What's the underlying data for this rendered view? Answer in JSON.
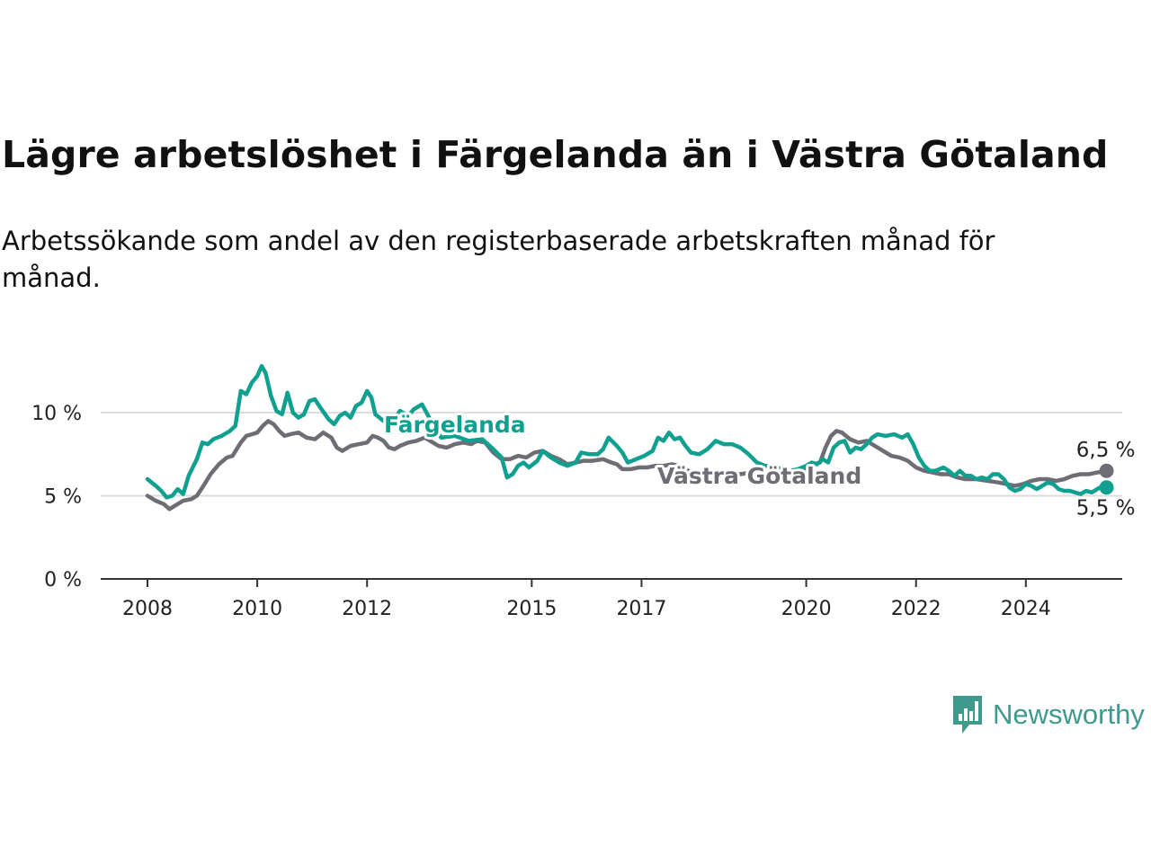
{
  "title": "Lägre arbetslöshet i Färgelanda än i Västra Götaland",
  "subtitle": "Arbetssökande som andel av den registerbaserade arbetskraften månad för månad.",
  "brand": {
    "name": "Newsworthy",
    "icon": "bar-chart-speech-bubble-icon",
    "color": "#3d9a8c"
  },
  "chart_data": {
    "type": "line",
    "ylabel": "",
    "xlabel": "",
    "ylim": [
      0,
      13
    ],
    "xlim": [
      2007.5,
      2025.9
    ],
    "grid": true,
    "y_ticks": [
      {
        "value": 0,
        "label": "0 %"
      },
      {
        "value": 5,
        "label": "5 %"
      },
      {
        "value": 10,
        "label": "10 %"
      }
    ],
    "x_ticks": [
      {
        "value": 2008,
        "label": "2008"
      },
      {
        "value": 2010,
        "label": "2010"
      },
      {
        "value": 2012,
        "label": "2012"
      },
      {
        "value": 2015,
        "label": "2015"
      },
      {
        "value": 2017,
        "label": "2017"
      },
      {
        "value": 2020,
        "label": "2020"
      },
      {
        "value": 2022,
        "label": "2022"
      },
      {
        "value": 2024,
        "label": "2024"
      }
    ],
    "series": [
      {
        "name": "Färgelanda",
        "color": "#10a090",
        "end_label": "5,5 %",
        "points": [
          [
            2008.0,
            6.0
          ],
          [
            2008.15,
            5.6
          ],
          [
            2008.25,
            5.3
          ],
          [
            2008.35,
            4.9
          ],
          [
            2008.45,
            5.0
          ],
          [
            2008.55,
            5.4
          ],
          [
            2008.65,
            5.1
          ],
          [
            2008.75,
            6.2
          ],
          [
            2008.9,
            7.2
          ],
          [
            2009.0,
            8.2
          ],
          [
            2009.1,
            8.1
          ],
          [
            2009.2,
            8.4
          ],
          [
            2009.35,
            8.6
          ],
          [
            2009.5,
            8.9
          ],
          [
            2009.6,
            9.2
          ],
          [
            2009.7,
            11.3
          ],
          [
            2009.8,
            11.1
          ],
          [
            2009.9,
            11.8
          ],
          [
            2010.0,
            12.2
          ],
          [
            2010.08,
            12.8
          ],
          [
            2010.15,
            12.4
          ],
          [
            2010.25,
            11.0
          ],
          [
            2010.35,
            10.1
          ],
          [
            2010.45,
            9.9
          ],
          [
            2010.55,
            11.2
          ],
          [
            2010.65,
            10.0
          ],
          [
            2010.75,
            9.7
          ],
          [
            2010.85,
            9.9
          ],
          [
            2010.95,
            10.7
          ],
          [
            2011.05,
            10.8
          ],
          [
            2011.15,
            10.3
          ],
          [
            2011.3,
            9.6
          ],
          [
            2011.4,
            9.3
          ],
          [
            2011.5,
            9.8
          ],
          [
            2011.6,
            10.0
          ],
          [
            2011.7,
            9.7
          ],
          [
            2011.8,
            10.4
          ],
          [
            2011.9,
            10.6
          ],
          [
            2012.0,
            11.3
          ],
          [
            2012.08,
            10.9
          ],
          [
            2012.15,
            9.9
          ],
          [
            2012.3,
            9.5
          ],
          [
            2012.45,
            9.3
          ],
          [
            2012.6,
            10.1
          ],
          [
            2012.75,
            9.8
          ],
          [
            2012.85,
            10.2
          ],
          [
            2013.0,
            10.5
          ],
          [
            2013.15,
            9.6
          ],
          [
            2013.35,
            8.5
          ],
          [
            2013.6,
            8.6
          ],
          [
            2013.85,
            8.3
          ],
          [
            2014.1,
            8.4
          ],
          [
            2014.3,
            7.8
          ],
          [
            2014.45,
            7.3
          ],
          [
            2014.55,
            6.1
          ],
          [
            2014.65,
            6.3
          ],
          [
            2014.75,
            6.8
          ],
          [
            2014.85,
            7.0
          ],
          [
            2014.95,
            6.7
          ],
          [
            2015.1,
            7.1
          ],
          [
            2015.2,
            7.7
          ],
          [
            2015.35,
            7.3
          ],
          [
            2015.5,
            7.0
          ],
          [
            2015.65,
            6.8
          ],
          [
            2015.8,
            7.0
          ],
          [
            2015.9,
            7.6
          ],
          [
            2016.05,
            7.5
          ],
          [
            2016.2,
            7.5
          ],
          [
            2016.3,
            7.8
          ],
          [
            2016.4,
            8.5
          ],
          [
            2016.55,
            8.0
          ],
          [
            2016.65,
            7.6
          ],
          [
            2016.75,
            7.0
          ],
          [
            2016.9,
            7.2
          ],
          [
            2017.05,
            7.4
          ],
          [
            2017.2,
            7.7
          ],
          [
            2017.3,
            8.5
          ],
          [
            2017.4,
            8.3
          ],
          [
            2017.5,
            8.8
          ],
          [
            2017.6,
            8.4
          ],
          [
            2017.7,
            8.5
          ],
          [
            2017.8,
            8.0
          ],
          [
            2017.9,
            7.6
          ],
          [
            2018.05,
            7.5
          ],
          [
            2018.2,
            7.8
          ],
          [
            2018.35,
            8.3
          ],
          [
            2018.5,
            8.1
          ],
          [
            2018.65,
            8.1
          ],
          [
            2018.8,
            7.9
          ],
          [
            2018.95,
            7.5
          ],
          [
            2019.1,
            7.0
          ],
          [
            2019.25,
            6.8
          ],
          [
            2019.4,
            6.8
          ],
          [
            2019.55,
            6.6
          ],
          [
            2019.7,
            6.5
          ],
          [
            2019.85,
            6.6
          ],
          [
            2020.0,
            6.8
          ],
          [
            2020.1,
            7.0
          ],
          [
            2020.2,
            6.9
          ],
          [
            2020.3,
            7.2
          ],
          [
            2020.4,
            7.0
          ],
          [
            2020.5,
            7.9
          ],
          [
            2020.6,
            8.2
          ],
          [
            2020.7,
            8.3
          ],
          [
            2020.8,
            7.6
          ],
          [
            2020.9,
            7.9
          ],
          [
            2021.0,
            7.8
          ],
          [
            2021.1,
            8.1
          ],
          [
            2021.2,
            8.5
          ],
          [
            2021.3,
            8.7
          ],
          [
            2021.45,
            8.6
          ],
          [
            2021.6,
            8.7
          ],
          [
            2021.75,
            8.5
          ],
          [
            2021.85,
            8.7
          ],
          [
            2021.95,
            8.1
          ],
          [
            2022.05,
            7.3
          ],
          [
            2022.15,
            6.8
          ],
          [
            2022.25,
            6.5
          ],
          [
            2022.35,
            6.5
          ],
          [
            2022.5,
            6.7
          ],
          [
            2022.6,
            6.5
          ],
          [
            2022.7,
            6.2
          ],
          [
            2022.8,
            6.5
          ],
          [
            2022.9,
            6.2
          ],
          [
            2023.0,
            6.2
          ],
          [
            2023.1,
            6.0
          ],
          [
            2023.2,
            6.1
          ],
          [
            2023.3,
            6.0
          ],
          [
            2023.4,
            6.3
          ],
          [
            2023.5,
            6.3
          ],
          [
            2023.6,
            6.0
          ],
          [
            2023.7,
            5.5
          ],
          [
            2023.8,
            5.3
          ],
          [
            2023.9,
            5.4
          ],
          [
            2024.0,
            5.7
          ],
          [
            2024.1,
            5.6
          ],
          [
            2024.2,
            5.4
          ],
          [
            2024.3,
            5.6
          ],
          [
            2024.4,
            5.8
          ],
          [
            2024.5,
            5.7
          ],
          [
            2024.6,
            5.4
          ],
          [
            2024.7,
            5.3
          ],
          [
            2024.8,
            5.3
          ],
          [
            2024.9,
            5.2
          ],
          [
            2025.0,
            5.1
          ],
          [
            2025.1,
            5.3
          ],
          [
            2025.2,
            5.2
          ],
          [
            2025.3,
            5.4
          ],
          [
            2025.4,
            5.6
          ],
          [
            2025.47,
            5.5
          ]
        ]
      },
      {
        "name": "Västra Götaland",
        "color": "#6e6d76",
        "end_label": "6,5 %",
        "points": [
          [
            2008.0,
            5.0
          ],
          [
            2008.15,
            4.7
          ],
          [
            2008.3,
            4.5
          ],
          [
            2008.4,
            4.2
          ],
          [
            2008.5,
            4.4
          ],
          [
            2008.65,
            4.7
          ],
          [
            2008.8,
            4.8
          ],
          [
            2008.9,
            5.0
          ],
          [
            2009.0,
            5.5
          ],
          [
            2009.15,
            6.3
          ],
          [
            2009.3,
            6.9
          ],
          [
            2009.45,
            7.3
          ],
          [
            2009.55,
            7.4
          ],
          [
            2009.7,
            8.2
          ],
          [
            2009.8,
            8.6
          ],
          [
            2009.9,
            8.7
          ],
          [
            2010.0,
            8.8
          ],
          [
            2010.1,
            9.2
          ],
          [
            2010.2,
            9.5
          ],
          [
            2010.3,
            9.3
          ],
          [
            2010.4,
            8.9
          ],
          [
            2010.5,
            8.6
          ],
          [
            2010.6,
            8.7
          ],
          [
            2010.75,
            8.8
          ],
          [
            2010.9,
            8.5
          ],
          [
            2011.05,
            8.4
          ],
          [
            2011.2,
            8.8
          ],
          [
            2011.35,
            8.5
          ],
          [
            2011.45,
            7.9
          ],
          [
            2011.55,
            7.7
          ],
          [
            2011.7,
            8.0
          ],
          [
            2011.85,
            8.1
          ],
          [
            2012.0,
            8.2
          ],
          [
            2012.1,
            8.6
          ],
          [
            2012.2,
            8.5
          ],
          [
            2012.3,
            8.3
          ],
          [
            2012.4,
            7.9
          ],
          [
            2012.5,
            7.8
          ],
          [
            2012.6,
            8.0
          ],
          [
            2012.75,
            8.2
          ],
          [
            2012.9,
            8.3
          ],
          [
            2013.05,
            8.5
          ],
          [
            2013.15,
            8.3
          ],
          [
            2013.3,
            8.0
          ],
          [
            2013.45,
            7.9
          ],
          [
            2013.6,
            8.1
          ],
          [
            2013.75,
            8.2
          ],
          [
            2013.9,
            8.1
          ],
          [
            2014.0,
            8.3
          ],
          [
            2014.15,
            8.2
          ],
          [
            2014.3,
            7.6
          ],
          [
            2014.45,
            7.2
          ],
          [
            2014.6,
            7.2
          ],
          [
            2014.75,
            7.4
          ],
          [
            2014.9,
            7.3
          ],
          [
            2015.05,
            7.6
          ],
          [
            2015.2,
            7.7
          ],
          [
            2015.35,
            7.4
          ],
          [
            2015.5,
            7.2
          ],
          [
            2015.65,
            6.9
          ],
          [
            2015.8,
            7.0
          ],
          [
            2015.95,
            7.1
          ],
          [
            2016.1,
            7.1
          ],
          [
            2016.3,
            7.2
          ],
          [
            2016.45,
            7.0
          ],
          [
            2016.55,
            6.9
          ],
          [
            2016.65,
            6.6
          ],
          [
            2016.8,
            6.6
          ],
          [
            2016.95,
            6.7
          ],
          [
            2017.1,
            6.7
          ],
          [
            2017.25,
            6.8
          ],
          [
            2017.4,
            6.8
          ],
          [
            2017.55,
            6.9
          ],
          [
            2017.7,
            6.8
          ],
          [
            2017.85,
            6.5
          ],
          [
            2018.0,
            6.4
          ],
          [
            2018.2,
            6.5
          ],
          [
            2018.4,
            6.3
          ],
          [
            2018.6,
            6.4
          ],
          [
            2018.8,
            6.3
          ],
          [
            2019.0,
            6.4
          ],
          [
            2019.2,
            6.2
          ],
          [
            2019.4,
            6.3
          ],
          [
            2019.6,
            6.4
          ],
          [
            2019.8,
            6.5
          ],
          [
            2020.0,
            6.6
          ],
          [
            2020.15,
            6.9
          ],
          [
            2020.25,
            7.0
          ],
          [
            2020.35,
            7.9
          ],
          [
            2020.45,
            8.6
          ],
          [
            2020.55,
            8.9
          ],
          [
            2020.65,
            8.8
          ],
          [
            2020.8,
            8.4
          ],
          [
            2020.95,
            8.2
          ],
          [
            2021.1,
            8.3
          ],
          [
            2021.25,
            8.0
          ],
          [
            2021.4,
            7.7
          ],
          [
            2021.55,
            7.4
          ],
          [
            2021.7,
            7.3
          ],
          [
            2021.85,
            7.1
          ],
          [
            2022.0,
            6.7
          ],
          [
            2022.15,
            6.5
          ],
          [
            2022.3,
            6.4
          ],
          [
            2022.45,
            6.3
          ],
          [
            2022.6,
            6.3
          ],
          [
            2022.75,
            6.1
          ],
          [
            2022.9,
            6.0
          ],
          [
            2023.1,
            6.0
          ],
          [
            2023.3,
            5.9
          ],
          [
            2023.5,
            5.8
          ],
          [
            2023.65,
            5.7
          ],
          [
            2023.8,
            5.6
          ],
          [
            2023.95,
            5.7
          ],
          [
            2024.1,
            5.9
          ],
          [
            2024.25,
            6.0
          ],
          [
            2024.4,
            6.0
          ],
          [
            2024.55,
            5.9
          ],
          [
            2024.7,
            6.0
          ],
          [
            2024.85,
            6.2
          ],
          [
            2025.0,
            6.3
          ],
          [
            2025.15,
            6.3
          ],
          [
            2025.3,
            6.4
          ],
          [
            2025.47,
            6.5
          ]
        ]
      }
    ]
  }
}
